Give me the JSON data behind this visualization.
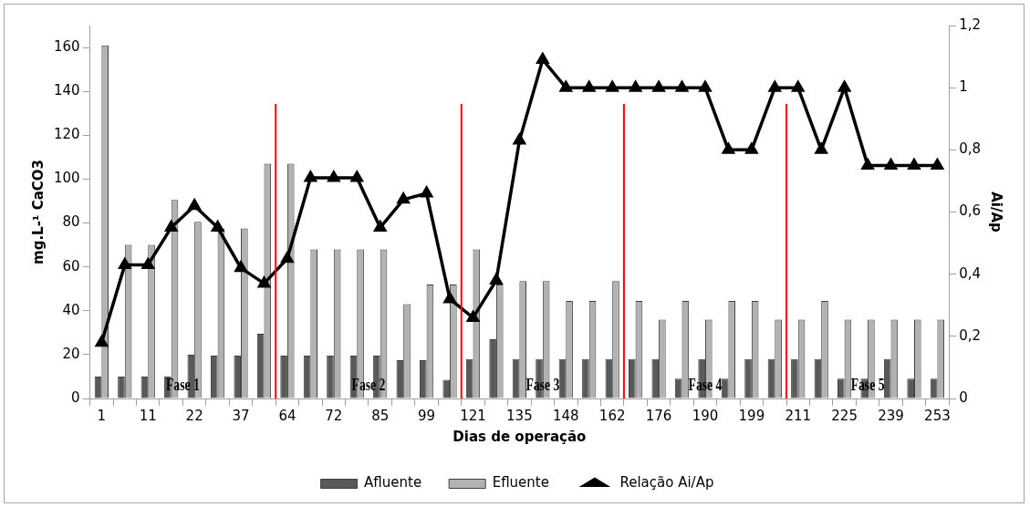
{
  "chart_data": {
    "type": "bar",
    "xlabel": "Dias de operação",
    "ylabel": "mg.L-¹ CaCO3",
    "y2label": "Ai/Ap",
    "categories": [
      "1",
      null,
      "11",
      null,
      "22",
      null,
      "37",
      null,
      "64",
      null,
      "72",
      null,
      "85",
      null,
      "99",
      null,
      "121",
      null,
      "135",
      null,
      "148",
      null,
      "162",
      null,
      "176",
      null,
      "190",
      null,
      "199",
      null,
      "211",
      null,
      "225",
      null,
      "239",
      null,
      "253"
    ],
    "series": [
      {
        "name": "Afluente",
        "color": "#595959",
        "values": [
          10,
          10,
          10,
          10,
          20,
          19.5,
          19.5,
          29.5,
          19.5,
          19.5,
          19.5,
          19.5,
          19.5,
          17.5,
          17.5,
          8.5,
          18,
          27,
          18,
          18,
          18,
          18,
          18,
          18,
          18,
          9,
          18,
          9,
          18,
          18,
          18,
          18,
          9,
          9,
          18,
          9,
          9
        ]
      },
      {
        "name": "Efluente",
        "color": "#b2b2b2",
        "values": [
          161,
          70,
          70,
          90.5,
          80.5,
          77.5,
          77.5,
          107,
          107,
          68,
          68,
          68,
          68,
          43,
          52,
          52,
          68,
          52,
          53.5,
          53.5,
          44.5,
          44.5,
          53.5,
          44.5,
          36,
          44.5,
          36,
          44.5,
          44.5,
          36,
          36,
          44.5,
          36,
          36,
          36,
          36,
          36
        ]
      },
      {
        "name": "Relação Ai/Ap",
        "type": "line",
        "axis": "y2",
        "color": "#000000",
        "marker": "triangle",
        "values": [
          0.18,
          0.43,
          0.43,
          0.55,
          0.62,
          0.55,
          0.42,
          0.37,
          0.45,
          0.71,
          0.71,
          0.71,
          0.55,
          0.64,
          0.66,
          0.32,
          0.26,
          0.38,
          0.83,
          1.09,
          1,
          1,
          1,
          1,
          1,
          1,
          1,
          0.8,
          0.8,
          1,
          1,
          0.8,
          1,
          0.75,
          0.75,
          0.75,
          0.75
        ]
      }
    ],
    "ylim": [
      0,
      170
    ],
    "yticks": [
      0,
      20,
      40,
      60,
      80,
      100,
      120,
      140,
      160
    ],
    "y2lim": [
      0,
      1.2
    ],
    "y2ticks": [
      0,
      {
        "value": 0.2,
        "label": "0,2"
      },
      {
        "value": 0.4,
        "label": "0,4"
      },
      {
        "value": 0.6,
        "label": "0,6"
      },
      {
        "value": 0.8,
        "label": "0,8"
      },
      1,
      {
        "value": 1.2,
        "label": "1,2"
      }
    ],
    "annotations": [
      "Fase 1",
      "Fase 2",
      "Fase 3",
      "Fase 4",
      "Fase 5"
    ],
    "grid": false,
    "legend": "bottom"
  }
}
